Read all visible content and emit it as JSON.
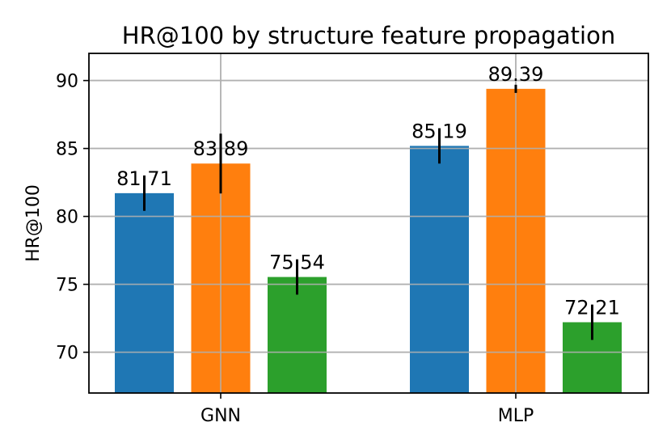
{
  "chart_data": {
    "type": "bar",
    "title": "HR@100 by structure feature propagation",
    "xlabel": "",
    "ylabel": "HR@100",
    "ylim": [
      67.0,
      92.0
    ],
    "yticks": [
      70,
      75,
      80,
      85,
      90
    ],
    "grid": true,
    "legend": null,
    "categories": [
      "GNN",
      "MLP"
    ],
    "series": [
      {
        "name": "series-1",
        "color": "#1f77b4",
        "values": [
          81.71,
          85.19
        ],
        "errors": [
          1.3,
          1.3
        ],
        "labels": [
          "81.71",
          "85.19"
        ]
      },
      {
        "name": "series-2",
        "color": "#ff7f0e",
        "values": [
          83.89,
          89.39
        ],
        "errors": [
          2.2,
          0.3
        ],
        "labels": [
          "83.89",
          "89.39"
        ]
      },
      {
        "name": "series-3",
        "color": "#2ca02c",
        "values": [
          75.54,
          72.21
        ],
        "errors": [
          1.3,
          1.3
        ],
        "labels": [
          "75.54",
          "72.21"
        ]
      }
    ]
  }
}
